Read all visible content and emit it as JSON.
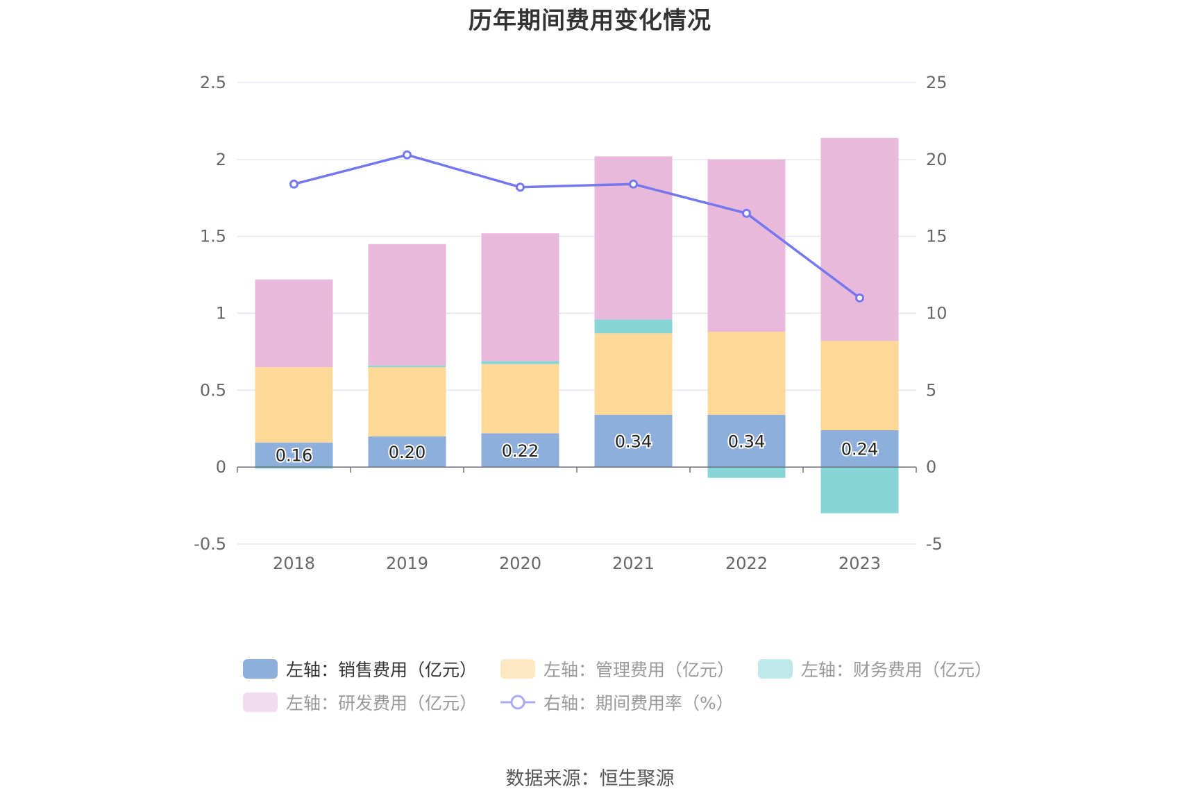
{
  "title": "历年期间费用变化情况",
  "source": "数据来源：恒生聚源",
  "legend": [
    {
      "label": "左轴：销售费用（亿元）",
      "color": "#8eaedc",
      "kind": "bar",
      "faded": false
    },
    {
      "label": "左轴：管理费用（亿元）",
      "color": "#ffe7c2",
      "kind": "bar",
      "faded": true
    },
    {
      "label": "左轴：财务费用（亿元）",
      "color": "#bfe9e9",
      "kind": "bar",
      "faded": true
    },
    {
      "label": "左轴：研发费用（亿元）",
      "color": "#f1dbec",
      "kind": "bar",
      "faded": true
    },
    {
      "label": "右轴：期间费用率（%）",
      "color": "#a9aaf0",
      "kind": "line",
      "faded": true
    }
  ],
  "chart_data": {
    "type": "bar",
    "stacked": true,
    "title": "历年期间费用变化情况",
    "categories": [
      "2018",
      "2019",
      "2020",
      "2021",
      "2022",
      "2023"
    ],
    "left_axis": {
      "min": -0.5,
      "max": 2.5,
      "ticks": [
        "2.5",
        "2",
        "1.5",
        "1",
        "0.5",
        "0",
        "-0.5"
      ]
    },
    "right_axis": {
      "min": -5,
      "max": 25,
      "ticks": [
        "25",
        "20",
        "15",
        "10",
        "5",
        "0",
        "-5"
      ]
    },
    "series": [
      {
        "name": "左轴：销售费用（亿元）",
        "axis": "left",
        "type": "bar",
        "color": "#8eaedc",
        "values": [
          0.16,
          0.2,
          0.22,
          0.34,
          0.34,
          0.24
        ],
        "labels": [
          "0.16",
          "0.20",
          "0.22",
          "0.34",
          "0.34",
          "0.24"
        ]
      },
      {
        "name": "左轴：管理费用（亿元）",
        "axis": "left",
        "type": "bar",
        "color": "#ffd898",
        "values": [
          0.49,
          0.45,
          0.45,
          0.53,
          0.54,
          0.58
        ]
      },
      {
        "name": "左轴：财务费用（亿元）",
        "axis": "left",
        "type": "bar",
        "color": "#88d5d7",
        "values": [
          -0.01,
          0.01,
          0.02,
          0.09,
          -0.07,
          -0.3
        ]
      },
      {
        "name": "左轴：研发费用（亿元）",
        "axis": "left",
        "type": "bar",
        "color": "#e8b9da",
        "values": [
          0.57,
          0.79,
          0.83,
          1.06,
          1.12,
          1.32
        ]
      },
      {
        "name": "右轴：期间费用率（%）",
        "axis": "right",
        "type": "line",
        "color": "#7577ef",
        "values": [
          18.4,
          20.3,
          18.2,
          18.4,
          16.5,
          11.0
        ]
      }
    ]
  }
}
